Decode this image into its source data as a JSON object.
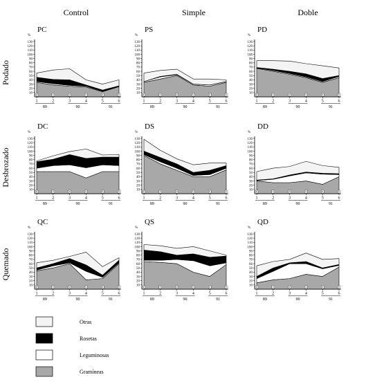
{
  "layout": {
    "columns": [
      "Control",
      "Simple",
      "Doble"
    ],
    "rows": [
      "Podado",
      "Desbrozado",
      "Quemado"
    ]
  },
  "legend": [
    {
      "label": "Otras",
      "color": "#f4f4f4"
    },
    {
      "label": "Rosetas",
      "color": "#000000"
    },
    {
      "label": "Leguminosas",
      "color": "#ffffff"
    },
    {
      "label": "Gramíneas",
      "color": "#a8a8a8"
    }
  ],
  "chart_data": [
    {
      "type": "area",
      "title": "PC",
      "row": 0,
      "col": 0,
      "ylabel": "%",
      "ylim": [
        0,
        130
      ],
      "yticks": [
        10,
        20,
        30,
        40,
        50,
        60,
        70,
        80,
        90,
        100,
        110,
        120,
        130
      ],
      "x": [
        1,
        2,
        3,
        4,
        5,
        6
      ],
      "xtick_labels": [
        "1",
        "2",
        "3",
        "4",
        "5",
        "6"
      ],
      "season_markers": [
        "P",
        "V",
        "P",
        "V",
        "P",
        "V"
      ],
      "years": [
        "89",
        "90",
        "91"
      ],
      "stack_order": [
        "Gramíneas",
        "Leguminosas",
        "Rosetas",
        "Otras"
      ],
      "series": [
        {
          "name": "Gramíneas",
          "values": [
            34,
            28,
            25,
            23,
            12,
            24
          ]
        },
        {
          "name": "Leguminosas",
          "values": [
            2,
            3,
            2,
            2,
            1,
            1
          ]
        },
        {
          "name": "Rosetas",
          "values": [
            10,
            10,
            13,
            3,
            3,
            1
          ]
        },
        {
          "name": "Otras",
          "values": [
            10,
            22,
            26,
            12,
            14,
            14
          ]
        }
      ]
    },
    {
      "type": "area",
      "title": "PS",
      "row": 0,
      "col": 1,
      "ylabel": "%",
      "ylim": [
        0,
        130
      ],
      "yticks": [
        10,
        20,
        30,
        40,
        50,
        60,
        70,
        80,
        90,
        100,
        110,
        120,
        130
      ],
      "x": [
        1,
        2,
        3,
        4,
        5,
        6
      ],
      "xtick_labels": [
        "1",
        "2",
        "3",
        "4",
        "5",
        "6"
      ],
      "season_markers": [
        "P",
        "V",
        "P",
        "V",
        "P",
        "V"
      ],
      "years": [
        "89",
        "90",
        "91"
      ],
      "stack_order": [
        "Gramíneas",
        "Leguminosas",
        "Rosetas",
        "Otras"
      ],
      "series": [
        {
          "name": "Gramíneas",
          "values": [
            34,
            42,
            50,
            28,
            25,
            34
          ]
        },
        {
          "name": "Leguminosas",
          "values": [
            2,
            5,
            2,
            2,
            3,
            2
          ]
        },
        {
          "name": "Rosetas",
          "values": [
            0,
            1,
            1,
            0,
            0,
            0
          ]
        },
        {
          "name": "Otras",
          "values": [
            20,
            14,
            12,
            12,
            14,
            4
          ]
        }
      ]
    },
    {
      "type": "area",
      "title": "PD",
      "row": 0,
      "col": 2,
      "ylabel": "%",
      "ylim": [
        0,
        130
      ],
      "yticks": [
        10,
        20,
        30,
        40,
        50,
        60,
        70,
        80,
        90,
        100,
        110,
        120,
        130
      ],
      "x": [
        1,
        2,
        3,
        4,
        5,
        6
      ],
      "xtick_labels": [
        "1",
        "2",
        "3",
        "4",
        "5",
        "6"
      ],
      "season_markers": [
        "P",
        "V",
        "P",
        "V",
        "P",
        "V"
      ],
      "years": [
        "89",
        "90",
        "91"
      ],
      "stack_order": [
        "Gramíneas",
        "Leguminosas",
        "Rosetas",
        "Otras"
      ],
      "series": [
        {
          "name": "Gramíneas",
          "values": [
            67,
            60,
            53,
            45,
            34,
            45
          ]
        },
        {
          "name": "Leguminosas",
          "values": [
            1,
            2,
            2,
            2,
            2,
            3
          ]
        },
        {
          "name": "Rosetas",
          "values": [
            1,
            3,
            5,
            7,
            7,
            2
          ]
        },
        {
          "name": "Otras",
          "values": [
            16,
            20,
            24,
            24,
            30,
            18
          ]
        }
      ]
    },
    {
      "type": "area",
      "title": "DC",
      "row": 1,
      "col": 0,
      "ylabel": "%",
      "ylim": [
        0,
        130
      ],
      "yticks": [
        10,
        20,
        30,
        40,
        50,
        60,
        70,
        80,
        90,
        100,
        110,
        120,
        130
      ],
      "x": [
        1,
        2,
        3,
        4,
        5,
        6
      ],
      "xtick_labels": [
        "1",
        "2",
        "3",
        "4",
        "5",
        "6"
      ],
      "season_markers": [
        "P",
        "V",
        "P",
        "V",
        "P",
        "V"
      ],
      "years": [
        "89",
        "90",
        "91"
      ],
      "stack_order": [
        "Gramíneas",
        "Leguminosas",
        "Rosetas",
        "Otras"
      ],
      "series": [
        {
          "name": "Gramíneas",
          "values": [
            52,
            52,
            52,
            37,
            52,
            52
          ]
        },
        {
          "name": "Leguminosas",
          "values": [
            8,
            14,
            16,
            24,
            16,
            14
          ]
        },
        {
          "name": "Rosetas",
          "values": [
            15,
            15,
            24,
            22,
            18,
            20
          ]
        },
        {
          "name": "Otras",
          "values": [
            2,
            8,
            7,
            22,
            5,
            6
          ]
        }
      ]
    },
    {
      "type": "area",
      "title": "DS",
      "row": 1,
      "col": 1,
      "ylabel": "%",
      "ylim": [
        0,
        130
      ],
      "yticks": [
        10,
        20,
        30,
        40,
        50,
        60,
        70,
        80,
        90,
        100,
        110,
        120,
        130
      ],
      "x": [
        1,
        2,
        3,
        4,
        5,
        6
      ],
      "xtick_labels": [
        "1",
        "2",
        "3",
        "4",
        "5",
        "6"
      ],
      "season_markers": [
        "P",
        "V",
        "P",
        "V",
        "P",
        "V"
      ],
      "years": [
        "89",
        "90",
        "91"
      ],
      "stack_order": [
        "Gramíneas",
        "Leguminosas",
        "Rosetas",
        "Otras"
      ],
      "series": [
        {
          "name": "Gramíneas",
          "values": [
            90,
            70,
            55,
            40,
            40,
            56
          ]
        },
        {
          "name": "Leguminosas",
          "values": [
            2,
            5,
            5,
            3,
            5,
            4
          ]
        },
        {
          "name": "Rosetas",
          "values": [
            8,
            10,
            10,
            7,
            10,
            6
          ]
        },
        {
          "name": "Otras",
          "values": [
            28,
            17,
            12,
            18,
            17,
            6
          ]
        }
      ]
    },
    {
      "type": "area",
      "title": "DD",
      "row": 1,
      "col": 2,
      "ylabel": "%",
      "ylim": [
        0,
        130
      ],
      "yticks": [
        10,
        20,
        30,
        40,
        50,
        60,
        70,
        80,
        90,
        100,
        110,
        120,
        130
      ],
      "x": [
        1,
        2,
        3,
        4,
        5,
        6
      ],
      "xtick_labels": [
        "1",
        "2",
        "3",
        "4",
        "5",
        "6"
      ],
      "season_markers": [
        "P",
        "V",
        "P",
        "V",
        "P",
        "V"
      ],
      "years": [
        "89",
        "90",
        "91"
      ],
      "stack_order": [
        "Gramíneas",
        "Leguminosas",
        "Rosetas",
        "Otras"
      ],
      "series": [
        {
          "name": "Gramíneas",
          "values": [
            30,
            26,
            26,
            30,
            22,
            40
          ]
        },
        {
          "name": "Leguminosas",
          "values": [
            1,
            8,
            16,
            19,
            24,
            5
          ]
        },
        {
          "name": "Rosetas",
          "values": [
            1,
            1,
            2,
            2,
            2,
            2
          ]
        },
        {
          "name": "Otras",
          "values": [
            20,
            25,
            20,
            25,
            18,
            15
          ]
        }
      ]
    },
    {
      "type": "area",
      "title": "QC",
      "row": 2,
      "col": 0,
      "ylabel": "%",
      "ylim": [
        0,
        130
      ],
      "yticks": [
        10,
        20,
        30,
        40,
        50,
        60,
        70,
        80,
        90,
        100,
        110,
        120,
        130
      ],
      "x": [
        1,
        2,
        3,
        4,
        5,
        6
      ],
      "xtick_labels": [
        "1",
        "2",
        "3",
        "4",
        "5",
        "6"
      ],
      "season_markers": [
        "P",
        "V",
        "P",
        "V",
        "P",
        "V"
      ],
      "years": [
        "89",
        "90",
        "91"
      ],
      "stack_order": [
        "Gramíneas",
        "Leguminosas",
        "Rosetas",
        "Otras"
      ],
      "series": [
        {
          "name": "Gramíneas",
          "values": [
            43,
            50,
            60,
            22,
            25,
            60
          ]
        },
        {
          "name": "Leguminosas",
          "values": [
            2,
            5,
            2,
            20,
            3,
            2
          ]
        },
        {
          "name": "Rosetas",
          "values": [
            5,
            5,
            10,
            15,
            5,
            6
          ]
        },
        {
          "name": "Otras",
          "values": [
            12,
            8,
            5,
            30,
            20,
            6
          ]
        }
      ]
    },
    {
      "type": "area",
      "title": "QS",
      "row": 2,
      "col": 1,
      "ylabel": "%",
      "ylim": [
        0,
        130
      ],
      "yticks": [
        10,
        20,
        30,
        40,
        50,
        60,
        70,
        80,
        90,
        100,
        110,
        120,
        130
      ],
      "x": [
        1,
        2,
        3,
        4,
        5,
        6
      ],
      "xtick_labels": [
        "1",
        "2",
        "3",
        "4",
        "5",
        "6"
      ],
      "season_markers": [
        "P",
        "V",
        "P",
        "V",
        "P",
        "V"
      ],
      "years": [
        "89",
        "90",
        "91"
      ],
      "stack_order": [
        "Gramíneas",
        "Leguminosas",
        "Rosetas",
        "Otras"
      ],
      "series": [
        {
          "name": "Gramíneas",
          "values": [
            65,
            63,
            60,
            40,
            30,
            58
          ]
        },
        {
          "name": "Leguminosas",
          "values": [
            3,
            5,
            10,
            27,
            25,
            4
          ]
        },
        {
          "name": "Rosetas",
          "values": [
            24,
            20,
            10,
            16,
            20,
            16
          ]
        },
        {
          "name": "Otras",
          "values": [
            13,
            14,
            16,
            17,
            15,
            2
          ]
        }
      ]
    },
    {
      "type": "area",
      "title": "QD",
      "row": 2,
      "col": 2,
      "ylabel": "%",
      "ylim": [
        0,
        130
      ],
      "yticks": [
        10,
        20,
        30,
        40,
        50,
        60,
        70,
        80,
        90,
        100,
        110,
        120,
        130
      ],
      "x": [
        1,
        2,
        3,
        4,
        5,
        6
      ],
      "xtick_labels": [
        "1",
        "2",
        "3",
        "4",
        "5",
        "6"
      ],
      "season_markers": [
        "P",
        "V",
        "P",
        "V",
        "P",
        "V"
      ],
      "years": [
        "89",
        "90",
        "91"
      ],
      "stack_order": [
        "Gramíneas",
        "Leguminosas",
        "Rosetas",
        "Otras"
      ],
      "series": [
        {
          "name": "Gramíneas",
          "values": [
            15,
            22,
            25,
            35,
            30,
            52
          ]
        },
        {
          "name": "Leguminosas",
          "values": [
            10,
            20,
            35,
            25,
            18,
            4
          ]
        },
        {
          "name": "Rosetas",
          "values": [
            5,
            8,
            2,
            5,
            2,
            2
          ]
        },
        {
          "name": "Otras",
          "values": [
            25,
            15,
            8,
            20,
            20,
            14
          ]
        }
      ]
    }
  ]
}
